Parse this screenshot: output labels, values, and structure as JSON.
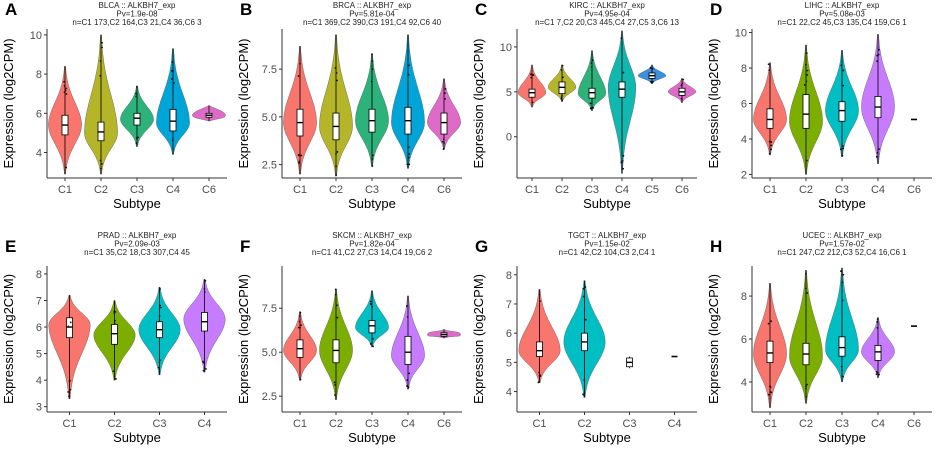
{
  "figure": {
    "ylabel": "Expression (log2CPM)",
    "xlabel": "Subtype"
  },
  "colors": {
    "C1": "#F8766D",
    "C2": "#7CAE00",
    "C3": "#00BFC4",
    "C4": "#C77CFF",
    "C5": "#3B8FDD",
    "C6": "#DE6BC8",
    "olive": "#B5B52A",
    "blue": "#00A5D8",
    "green": "#2CB27A",
    "teal": "#11B8B0",
    "purple": "#A66BBF"
  },
  "chart_data": [
    {
      "type": "violin",
      "panel": "A",
      "title": "BLCA :: ALKBH7_exp",
      "pvalue": "Pv=1.9e-08",
      "counts": "n=C1 173,C2 164,C3 21,C4 36,C6 3",
      "ylim": [
        2.7,
        10.3
      ],
      "yticks": [
        4,
        6,
        8,
        10
      ],
      "categories": [
        "C1",
        "C2",
        "C3",
        "C4",
        "C6"
      ],
      "color_keys": [
        "C1",
        "olive",
        "green",
        "blue",
        "C6"
      ],
      "median": [
        5.4,
        5.05,
        5.75,
        5.6,
        5.9
      ],
      "q1": [
        4.9,
        4.6,
        5.4,
        5.1,
        5.8
      ],
      "q3": [
        5.9,
        5.55,
        6.0,
        6.2,
        6.0
      ],
      "min": [
        2.9,
        2.9,
        4.3,
        3.9,
        5.6
      ],
      "max": [
        8.4,
        10.0,
        7.4,
        9.3,
        6.4
      ],
      "max_density_at": [
        5.4,
        5.0,
        5.7,
        5.5,
        5.9
      ]
    },
    {
      "type": "violin",
      "panel": "B",
      "title": "BRCA :: ALKBH7_exp",
      "pvalue": "Pv=5.81e-04",
      "counts": "n=C1 369,C2 390,C3 191,C4 92,C6 40",
      "ylim": [
        1.8,
        9.6
      ],
      "yticks": [
        2.5,
        5.0,
        7.5
      ],
      "categories": [
        "C1",
        "C2",
        "C3",
        "C4",
        "C6"
      ],
      "color_keys": [
        "C1",
        "olive",
        "green",
        "blue",
        "C6"
      ],
      "median": [
        4.7,
        4.5,
        4.8,
        4.8,
        4.7
      ],
      "q1": [
        4.0,
        3.8,
        4.2,
        4.1,
        4.1
      ],
      "q3": [
        5.4,
        5.2,
        5.4,
        5.5,
        5.2
      ],
      "min": [
        2.0,
        1.9,
        2.4,
        2.3,
        3.3
      ],
      "max": [
        8.7,
        9.3,
        8.3,
        9.3,
        7.0
      ],
      "max_density_at": [
        4.7,
        4.5,
        4.8,
        4.7,
        4.7
      ]
    },
    {
      "type": "violin",
      "panel": "C",
      "title": "KIRC :: ALKBH7_exp",
      "pvalue": "Pv=4.95e-04",
      "counts": "n=C1 7,C2 20,C3 445,C4 27,C5 3,C6 13",
      "ylim": [
        -4.6,
        12.0
      ],
      "yticks": [
        0,
        5,
        10
      ],
      "categories": [
        "C1",
        "C2",
        "C3",
        "C4",
        "C5",
        "C6"
      ],
      "color_keys": [
        "C1",
        "olive",
        "green",
        "teal",
        "C5",
        "C6"
      ],
      "median": [
        4.9,
        5.5,
        4.9,
        5.3,
        6.8,
        5.0
      ],
      "q1": [
        4.4,
        4.8,
        4.3,
        4.4,
        6.5,
        4.6
      ],
      "q3": [
        5.3,
        6.1,
        5.4,
        6.1,
        7.1,
        5.4
      ],
      "min": [
        3.3,
        3.9,
        2.9,
        -4.1,
        5.9,
        3.8
      ],
      "max": [
        8.0,
        8.0,
        9.6,
        11.8,
        8.0,
        6.5
      ],
      "max_density_at": [
        4.9,
        5.5,
        4.8,
        5.5,
        6.8,
        5.0
      ]
    },
    {
      "type": "violin",
      "panel": "D",
      "title": "LIHC :: ALKBH7_exp",
      "pvalue": "Pv=5.08e-03",
      "counts": "n=C1 22,C2 45,C3 135,C4 159,C6 1",
      "ylim": [
        1.8,
        10.2
      ],
      "yticks": [
        2,
        4,
        6,
        8,
        10
      ],
      "categories": [
        "C1",
        "C2",
        "C3",
        "C4",
        "C6"
      ],
      "color_keys": [
        "C1",
        "C2",
        "C3",
        "C4",
        "C6"
      ],
      "median": [
        5.1,
        5.4,
        5.6,
        5.8,
        5.1
      ],
      "q1": [
        4.6,
        4.6,
        5.0,
        5.2,
        null
      ],
      "q3": [
        5.7,
        6.5,
        6.1,
        6.4,
        null
      ],
      "min": [
        3.1,
        2.0,
        3.0,
        2.6,
        null
      ],
      "max": [
        8.3,
        9.3,
        9.0,
        9.9,
        null
      ],
      "max_density_at": [
        5.1,
        5.0,
        5.6,
        5.8,
        null
      ]
    },
    {
      "type": "violin",
      "panel": "E",
      "title": "PRAD :: ALKBH7_exp",
      "pvalue": "Pv=2.09e-03",
      "counts": "n=C1 35,C2 18,C3 307,C4 45",
      "ylim": [
        2.8,
        8.3
      ],
      "yticks": [
        3,
        4,
        5,
        6,
        7,
        8
      ],
      "categories": [
        "C1",
        "C2",
        "C3",
        "C4"
      ],
      "color_keys": [
        "C1",
        "C2",
        "C3",
        "C4"
      ],
      "median": [
        6.0,
        5.75,
        5.9,
        6.2
      ],
      "q1": [
        5.6,
        5.35,
        5.6,
        5.85
      ],
      "q3": [
        6.35,
        6.1,
        6.2,
        6.55
      ],
      "min": [
        3.3,
        4.0,
        4.2,
        4.3
      ],
      "max": [
        7.2,
        7.0,
        7.5,
        7.8
      ],
      "max_density_at": [
        6.1,
        5.7,
        5.9,
        6.3
      ]
    },
    {
      "type": "violin",
      "panel": "F",
      "title": "SKCM :: ALKBH7_exp",
      "pvalue": "Pv=1.82e-04",
      "counts": "n=C1 41,C2 27,C3 14,C4 19,C6 2",
      "ylim": [
        1.6,
        9.9
      ],
      "yticks": [
        2.5,
        5.0,
        7.5
      ],
      "categories": [
        "C1",
        "C2",
        "C3",
        "C4",
        "C6"
      ],
      "color_keys": [
        "C1",
        "C2",
        "C3",
        "C4",
        "C6"
      ],
      "median": [
        5.2,
        5.1,
        6.5,
        5.0,
        6.0
      ],
      "q1": [
        4.7,
        4.4,
        6.1,
        4.3,
        5.9
      ],
      "q3": [
        5.7,
        5.7,
        6.8,
        5.9,
        6.1
      ],
      "min": [
        3.4,
        2.3,
        5.3,
        2.9,
        5.8
      ],
      "max": [
        7.3,
        8.6,
        8.5,
        8.2,
        6.3
      ],
      "max_density_at": [
        5.1,
        5.1,
        6.4,
        4.8,
        6.0
      ]
    },
    {
      "type": "violin",
      "panel": "G",
      "title": "TGCT :: ALKBH7_exp",
      "pvalue": "Pv=1.15e-02",
      "counts": "n=C1 42,C2 104,C3 2,C4 1",
      "ylim": [
        3.3,
        8.3
      ],
      "yticks": [
        4,
        5,
        6,
        7,
        8
      ],
      "categories": [
        "C1",
        "C2",
        "C3",
        "C4"
      ],
      "color_keys": [
        "C1",
        "C3",
        "C3",
        "C4"
      ],
      "median": [
        5.4,
        5.7,
        5.0,
        5.2
      ],
      "q1": [
        5.2,
        5.4,
        4.85,
        null
      ],
      "q3": [
        5.7,
        6.0,
        5.15,
        null
      ],
      "min": [
        4.3,
        3.8,
        4.8,
        null
      ],
      "max": [
        7.5,
        7.8,
        5.2,
        null
      ],
      "max_density_at": [
        5.4,
        5.7,
        null,
        null
      ]
    },
    {
      "type": "violin",
      "panel": "H",
      "title": "UCEC :: ALKBH7_exp",
      "pvalue": "Pv=1.57e-02",
      "counts": "n=C1 247,C2 212,C3 52,C4 16,C6 1",
      "ylim": [
        2.6,
        9.4
      ],
      "yticks": [
        4,
        6,
        8
      ],
      "categories": [
        "C1",
        "C2",
        "C3",
        "C4",
        "C6"
      ],
      "color_keys": [
        "C1",
        "C2",
        "C3",
        "C4",
        "C6"
      ],
      "median": [
        5.35,
        5.3,
        5.6,
        5.4,
        6.6
      ],
      "q1": [
        4.9,
        4.8,
        5.2,
        5.0,
        null
      ],
      "q3": [
        5.9,
        5.8,
        6.1,
        5.7,
        null
      ],
      "min": [
        2.8,
        3.0,
        4.0,
        4.2,
        null
      ],
      "max": [
        8.6,
        9.2,
        9.3,
        7.0,
        null
      ],
      "max_density_at": [
        5.3,
        5.2,
        5.5,
        5.4,
        null
      ]
    }
  ]
}
